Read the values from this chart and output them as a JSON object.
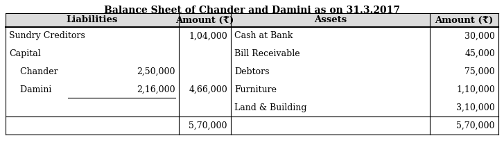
{
  "title": "Balance Sheet of Chander and Damini as on 31.3.2017",
  "col_headers": [
    "Liabilities",
    "Amount (₹)",
    "Assets",
    "Amount (₹)"
  ],
  "rows_data": [
    {
      "liab_name": "Sundry Creditors",
      "liab_sub": "",
      "liab_amt": "1,04,000",
      "asset_name": "Cash at Bank",
      "asset_amt": "30,000"
    },
    {
      "liab_name": "Capital",
      "liab_sub": "",
      "liab_amt": "",
      "asset_name": "Bill Receivable",
      "asset_amt": "45,000"
    },
    {
      "liab_name": "    Chander",
      "liab_sub": "2,50,000",
      "liab_amt": "",
      "asset_name": "Debtors",
      "asset_amt": "75,000"
    },
    {
      "liab_name": "    Damini",
      "liab_sub": "2,16,000",
      "liab_amt": "4,66,000",
      "asset_name": "Furniture",
      "asset_amt": "1,10,000"
    },
    {
      "liab_name": "",
      "liab_sub": "",
      "liab_amt": "",
      "asset_name": "Land & Building",
      "asset_amt": "3,10,000"
    },
    {
      "liab_name": "",
      "liab_sub": "",
      "liab_amt": "5,70,000",
      "asset_name": "",
      "asset_amt": "5,70,000"
    }
  ],
  "bg_color": "#ffffff",
  "text_color": "#000000",
  "font_size": 9,
  "title_font_size": 10,
  "header_bg": "#dcdcdc"
}
